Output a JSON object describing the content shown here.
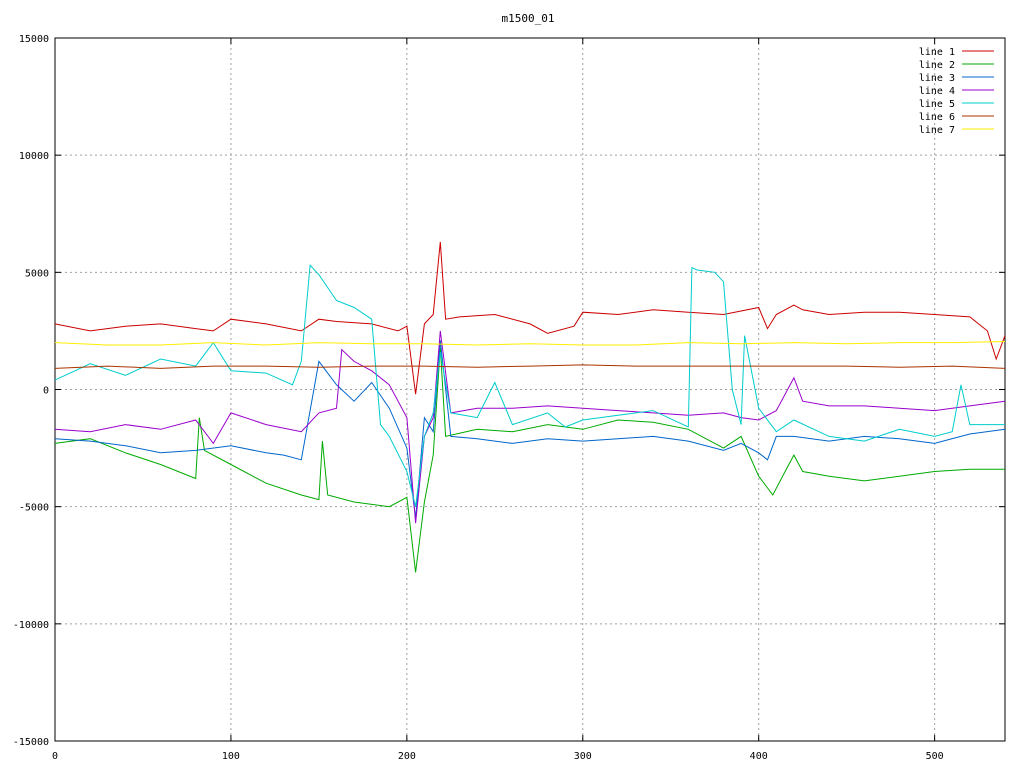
{
  "chart_data": {
    "type": "line",
    "title": "m1500_01",
    "xlim": [
      0,
      540
    ],
    "ylim": [
      -15000,
      15000
    ],
    "x_ticks": [
      0,
      100,
      200,
      300,
      400,
      500
    ],
    "y_ticks": [
      -15000,
      -10000,
      -5000,
      0,
      5000,
      10000,
      15000
    ],
    "x_tick_labels": [
      "0",
      "100",
      "200",
      "300",
      "400",
      "500"
    ],
    "y_tick_labels": [
      "-15000",
      "-10000",
      "-5000",
      "0",
      "5000",
      "10000",
      "15000"
    ],
    "grid": true,
    "legend_position": "top-right",
    "series": [
      {
        "name": "line 1",
        "color": "#cc0000",
        "x": [
          0,
          20,
          40,
          60,
          80,
          90,
          100,
          120,
          140,
          150,
          160,
          180,
          195,
          200,
          205,
          210,
          215,
          219,
          222,
          230,
          250,
          270,
          280,
          295,
          300,
          320,
          340,
          360,
          380,
          400,
          405,
          410,
          420,
          425,
          440,
          460,
          480,
          500,
          520,
          530,
          535,
          540
        ],
        "y": [
          2800,
          2500,
          2700,
          2800,
          2600,
          2500,
          3000,
          2800,
          2500,
          3000,
          2900,
          2800,
          2500,
          2700,
          -200,
          2800,
          3200,
          6300,
          3000,
          3100,
          3200,
          2800,
          2400,
          2700,
          3300,
          3200,
          3400,
          3300,
          3200,
          3500,
          2600,
          3200,
          3600,
          3400,
          3200,
          3300,
          3300,
          3200,
          3100,
          2500,
          1300,
          2300
        ]
      },
      {
        "name": "line 2",
        "color": "#00aa00",
        "x": [
          0,
          20,
          40,
          60,
          80,
          82,
          85,
          100,
          120,
          140,
          150,
          152,
          155,
          170,
          190,
          200,
          205,
          210,
          215,
          219,
          222,
          240,
          260,
          280,
          300,
          320,
          340,
          360,
          380,
          390,
          400,
          408,
          415,
          420,
          425,
          440,
          460,
          480,
          500,
          520,
          540
        ],
        "y": [
          -2300,
          -2100,
          -2700,
          -3200,
          -3800,
          -1200,
          -2600,
          -3200,
          -4000,
          -4500,
          -4700,
          -2200,
          -4500,
          -4800,
          -5000,
          -4600,
          -7800,
          -4800,
          -2800,
          1800,
          -2000,
          -1700,
          -1800,
          -1500,
          -1700,
          -1300,
          -1400,
          -1700,
          -2500,
          -2000,
          -3700,
          -4500,
          -3500,
          -2800,
          -3500,
          -3700,
          -3900,
          -3700,
          -3500,
          -3400,
          -3400
        ]
      },
      {
        "name": "line 3",
        "color": "#0066cc",
        "x": [
          0,
          20,
          40,
          60,
          80,
          100,
          120,
          130,
          140,
          150,
          160,
          170,
          180,
          190,
          200,
          205,
          210,
          215,
          219,
          225,
          240,
          260,
          280,
          300,
          320,
          340,
          360,
          380,
          390,
          400,
          405,
          410,
          420,
          440,
          460,
          480,
          500,
          520,
          540
        ],
        "y": [
          -2100,
          -2200,
          -2400,
          -2700,
          -2600,
          -2400,
          -2700,
          -2800,
          -3000,
          1200,
          200,
          -500,
          300,
          -800,
          -2500,
          -5500,
          -1200,
          -1800,
          2100,
          -2000,
          -2100,
          -2300,
          -2100,
          -2200,
          -2100,
          -2000,
          -2200,
          -2600,
          -2300,
          -2700,
          -3000,
          -2000,
          -2000,
          -2200,
          -2000,
          -2100,
          -2300,
          -1900,
          -1700
        ]
      },
      {
        "name": "line 4",
        "color": "#9900cc",
        "x": [
          0,
          20,
          40,
          60,
          80,
          90,
          100,
          120,
          140,
          150,
          160,
          163,
          170,
          180,
          190,
          200,
          205,
          210,
          215,
          219,
          225,
          240,
          260,
          280,
          300,
          320,
          340,
          360,
          380,
          390,
          400,
          410,
          420,
          425,
          440,
          460,
          480,
          500,
          520,
          540
        ],
        "y": [
          -1700,
          -1800,
          -1500,
          -1700,
          -1300,
          -2300,
          -1000,
          -1500,
          -1800,
          -1000,
          -800,
          1700,
          1200,
          800,
          200,
          -1200,
          -5700,
          -2000,
          -1200,
          2500,
          -1000,
          -800,
          -800,
          -700,
          -800,
          -900,
          -1000,
          -1100,
          -1000,
          -1200,
          -1300,
          -900,
          500,
          -500,
          -700,
          -700,
          -800,
          -900,
          -700,
          -500
        ]
      },
      {
        "name": "line 5",
        "color": "#00cccc",
        "x": [
          0,
          20,
          40,
          60,
          80,
          90,
          100,
          120,
          135,
          140,
          145,
          150,
          160,
          170,
          180,
          185,
          190,
          200,
          205,
          210,
          215,
          219,
          225,
          240,
          250,
          260,
          280,
          290,
          300,
          320,
          340,
          360,
          362,
          365,
          375,
          380,
          385,
          390,
          392,
          400,
          410,
          420,
          440,
          460,
          480,
          500,
          510,
          515,
          520,
          540
        ],
        "y": [
          400,
          1100,
          600,
          1300,
          1000,
          2000,
          800,
          700,
          200,
          1200,
          5300,
          4900,
          3800,
          3500,
          3000,
          -1500,
          -2000,
          -3500,
          -5000,
          -2000,
          -1000,
          1600,
          -1000,
          -1200,
          300,
          -1500,
          -1000,
          -1600,
          -1300,
          -1100,
          -900,
          -1600,
          5200,
          5100,
          5000,
          4600,
          0,
          -1500,
          2300,
          -800,
          -1800,
          -1300,
          -2000,
          -2200,
          -1700,
          -2000,
          -1800,
          200,
          -1500,
          -1500
        ]
      },
      {
        "name": "line 6",
        "color": "#aa3300",
        "x": [
          0,
          30,
          60,
          90,
          120,
          150,
          180,
          210,
          240,
          270,
          300,
          330,
          360,
          390,
          420,
          450,
          480,
          510,
          540
        ],
        "y": [
          900,
          1000,
          900,
          1000,
          1000,
          950,
          1000,
          1000,
          950,
          1000,
          1050,
          1000,
          1000,
          1000,
          1000,
          1000,
          950,
          1000,
          900
        ]
      },
      {
        "name": "line 7",
        "color": "#ffee00",
        "x": [
          0,
          30,
          60,
          90,
          120,
          150,
          180,
          210,
          240,
          270,
          300,
          330,
          360,
          390,
          420,
          450,
          480,
          510,
          540
        ],
        "y": [
          2000,
          1900,
          1900,
          2000,
          1900,
          2000,
          1950,
          1950,
          1900,
          1950,
          1900,
          1900,
          2000,
          1950,
          2000,
          1950,
          2000,
          2000,
          2050
        ]
      }
    ]
  }
}
